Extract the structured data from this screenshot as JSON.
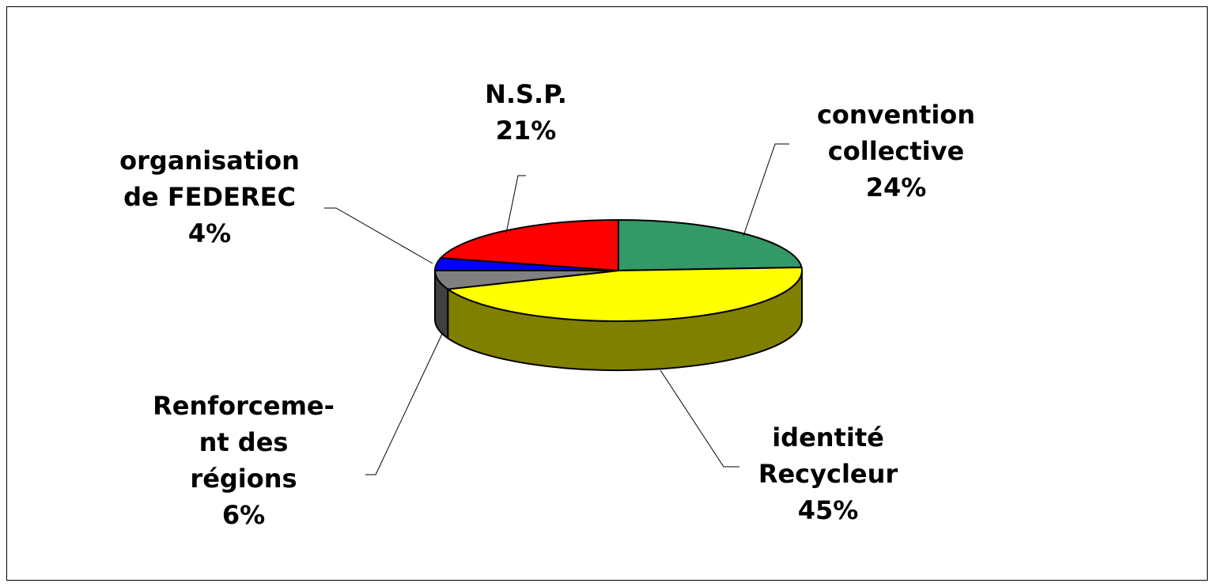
{
  "chart_data": {
    "type": "pie3d",
    "categories": [
      "convention\ncollective",
      "identité\nRecycleur",
      "Renforceme-\nnt des\nrégions",
      "organisation\nde FEDEREC",
      "N.S.P."
    ],
    "values": [
      24,
      45,
      6,
      4,
      21
    ],
    "value_labels": [
      "24%",
      "45%",
      "6%",
      "4%",
      "21%"
    ],
    "colors": [
      "#339966",
      "#ffff00",
      "#808080",
      "#0000ff",
      "#ff0000"
    ]
  }
}
